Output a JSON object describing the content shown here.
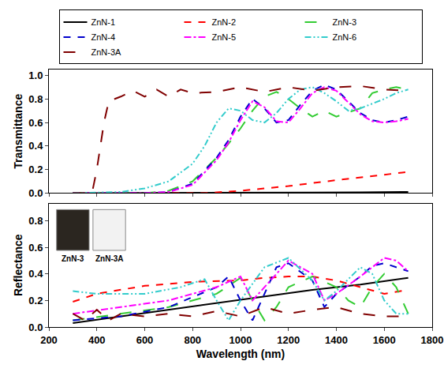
{
  "chart_data": [
    {
      "type": "line",
      "ylabel": "Transmittance",
      "legend": "top",
      "grid": false,
      "tick_labels": "y",
      "xlim": [
        200,
        1800
      ],
      "xticks": [
        200,
        400,
        600,
        800,
        1000,
        1200,
        1400,
        1600,
        1800
      ],
      "ylim": [
        0,
        1.05
      ],
      "yticks": [
        {
          "value": 0,
          "label": "0.0"
        },
        0.2,
        0.4,
        0.6,
        0.8,
        {
          "value": 1,
          "label": "1.0"
        }
      ],
      "series": [
        {
          "name": "ZnN-1",
          "color": "#000000",
          "line_style": "solid",
          "x": [
            300,
            500,
            700,
            900,
            1100,
            1300,
            1500,
            1700
          ],
          "values": [
            0,
            0,
            0,
            0,
            0,
            0.005,
            0.007,
            0.01
          ]
        },
        {
          "name": "ZnN-2",
          "color": "#ff0000",
          "line_style": "dash",
          "x": [
            300,
            600,
            850,
            1000,
            1200,
            1400,
            1600,
            1700
          ],
          "values": [
            0,
            0,
            0,
            0.02,
            0.06,
            0.11,
            0.16,
            0.18
          ]
        },
        {
          "name": "ZnN-3",
          "color": "#33cc33",
          "line_style": "longdash",
          "x": [
            300,
            600,
            700,
            800,
            900,
            950,
            1000,
            1050,
            1100,
            1150,
            1200,
            1250,
            1300,
            1350,
            1400,
            1500,
            1550,
            1600,
            1650,
            1700
          ],
          "values": [
            0,
            0,
            0.02,
            0.1,
            0.3,
            0.42,
            0.55,
            0.7,
            0.82,
            0.86,
            0.8,
            0.72,
            0.65,
            0.7,
            0.65,
            0.72,
            0.85,
            0.88,
            0.9,
            0.88
          ]
        },
        {
          "name": "ZnN-4",
          "color": "#0000cc",
          "line_style": "dash",
          "x": [
            300,
            600,
            700,
            800,
            900,
            950,
            1000,
            1050,
            1100,
            1150,
            1200,
            1250,
            1300,
            1350,
            1400,
            1450,
            1500,
            1550,
            1600,
            1650,
            1700
          ],
          "values": [
            0,
            0,
            0.01,
            0.08,
            0.3,
            0.45,
            0.65,
            0.8,
            0.72,
            0.6,
            0.62,
            0.75,
            0.87,
            0.92,
            0.88,
            0.78,
            0.68,
            0.62,
            0.6,
            0.62,
            0.65
          ]
        },
        {
          "name": "ZnN-5",
          "color": "#ff00ff",
          "line_style": "dashdot",
          "x": [
            300,
            600,
            700,
            800,
            900,
            950,
            1000,
            1050,
            1100,
            1150,
            1200,
            1250,
            1300,
            1350,
            1400,
            1450,
            1500,
            1550,
            1600,
            1650,
            1700
          ],
          "values": [
            0,
            0,
            0.01,
            0.07,
            0.28,
            0.43,
            0.62,
            0.78,
            0.73,
            0.61,
            0.6,
            0.72,
            0.85,
            0.9,
            0.87,
            0.77,
            0.67,
            0.61,
            0.6,
            0.61,
            0.63
          ]
        },
        {
          "name": "ZnN-6",
          "color": "#33cccc",
          "line_style": "dashdotdot",
          "x": [
            300,
            500,
            600,
            700,
            800,
            850,
            900,
            950,
            1000,
            1050,
            1100,
            1150,
            1200,
            1250,
            1300,
            1350,
            1400,
            1450,
            1500,
            1550,
            1600,
            1650,
            1700
          ],
          "values": [
            0,
            0.01,
            0.04,
            0.1,
            0.25,
            0.4,
            0.6,
            0.72,
            0.7,
            0.62,
            0.6,
            0.68,
            0.8,
            0.88,
            0.9,
            0.85,
            0.78,
            0.7,
            0.72,
            0.76,
            0.8,
            0.85,
            0.88
          ]
        },
        {
          "name": "ZnN-3A",
          "color": "#800000",
          "line_style": "longdash",
          "x": [
            300,
            380,
            400,
            430,
            450,
            500,
            550,
            600,
            650,
            700,
            750,
            800,
            900,
            1000,
            1100,
            1200,
            1300,
            1400,
            1500,
            1600,
            1700
          ],
          "values": [
            0,
            0,
            0.2,
            0.6,
            0.78,
            0.82,
            0.87,
            0.82,
            0.88,
            0.82,
            0.88,
            0.85,
            0.86,
            0.9,
            0.86,
            0.9,
            0.87,
            0.9,
            0.91,
            0.88,
            0.87
          ]
        }
      ]
    },
    {
      "type": "line",
      "ylabel": "Reflectance",
      "xlabel": "Wavelength (nm)",
      "grid": false,
      "annotations": [
        "ZnN-3",
        "ZnN-3A"
      ],
      "xlim": [
        200,
        1800
      ],
      "xticks": [
        200,
        400,
        600,
        800,
        1000,
        1200,
        1400,
        1600,
        1800
      ],
      "ylim": [
        0,
        0.93
      ],
      "yticks": [
        {
          "value": 0,
          "label": "0.0"
        },
        0.2,
        0.4,
        0.6,
        0.8
      ],
      "series": [
        {
          "name": "ZnN-1",
          "color": "#000000",
          "line_style": "solid",
          "x": [
            300,
            500,
            700,
            900,
            1100,
            1300,
            1500,
            1700
          ],
          "values": [
            0.03,
            0.08,
            0.13,
            0.18,
            0.23,
            0.28,
            0.32,
            0.37
          ]
        },
        {
          "name": "ZnN-2",
          "color": "#ff0000",
          "line_style": "dash",
          "x": [
            300,
            400,
            600,
            800,
            1000,
            1100,
            1200,
            1300,
            1400,
            1500,
            1600,
            1700
          ],
          "values": [
            0.19,
            0.25,
            0.31,
            0.34,
            0.35,
            0.37,
            0.38,
            0.38,
            0.35,
            0.3,
            0.25,
            0.28
          ]
        },
        {
          "name": "ZnN-3",
          "color": "#33cc33",
          "line_style": "longdash",
          "x": [
            300,
            500,
            700,
            900,
            1000,
            1050,
            1100,
            1150,
            1200,
            1300,
            1400,
            1450,
            1500,
            1550,
            1600,
            1650,
            1700
          ],
          "values": [
            0.05,
            0.1,
            0.15,
            0.25,
            0.37,
            0.2,
            0.05,
            0.15,
            0.3,
            0.38,
            0.3,
            0.2,
            0.15,
            0.3,
            0.4,
            0.3,
            0.1
          ]
        },
        {
          "name": "ZnN-4",
          "color": "#0000cc",
          "line_style": "dash",
          "x": [
            300,
            500,
            700,
            900,
            950,
            1000,
            1050,
            1100,
            1150,
            1200,
            1300,
            1350,
            1400,
            1500,
            1550,
            1600,
            1650,
            1700
          ],
          "values": [
            0.05,
            0.08,
            0.15,
            0.3,
            0.38,
            0.2,
            0.05,
            0.25,
            0.45,
            0.48,
            0.35,
            0.15,
            0.25,
            0.38,
            0.46,
            0.48,
            0.45,
            0.42
          ]
        },
        {
          "name": "ZnN-5",
          "color": "#ff00ff",
          "line_style": "dashdot",
          "x": [
            300,
            500,
            700,
            900,
            1000,
            1050,
            1100,
            1200,
            1300,
            1350,
            1400,
            1500,
            1600,
            1650,
            1700
          ],
          "values": [
            0.1,
            0.15,
            0.2,
            0.3,
            0.38,
            0.2,
            0.3,
            0.5,
            0.4,
            0.2,
            0.25,
            0.38,
            0.52,
            0.5,
            0.42
          ]
        },
        {
          "name": "ZnN-6",
          "color": "#33cccc",
          "line_style": "dashdotdot",
          "x": [
            300,
            400,
            600,
            750,
            850,
            900,
            950,
            1000,
            1100,
            1200,
            1300,
            1350,
            1400,
            1500,
            1550,
            1600,
            1650,
            1700
          ],
          "values": [
            0.27,
            0.25,
            0.25,
            0.3,
            0.36,
            0.2,
            0.05,
            0.2,
            0.45,
            0.52,
            0.35,
            0.2,
            0.27,
            0.45,
            0.4,
            0.2,
            0.1,
            0.1
          ]
        },
        {
          "name": "ZnN-3A",
          "color": "#800000",
          "line_style": "longdash",
          "x": [
            300,
            350,
            400,
            450,
            500,
            600,
            700,
            800,
            900,
            1000,
            1100,
            1200,
            1300,
            1400,
            1500,
            1600,
            1700
          ],
          "values": [
            0.1,
            0.05,
            0.13,
            0.05,
            0.1,
            0.08,
            0.1,
            0.08,
            0.12,
            0.08,
            0.15,
            0.1,
            0.13,
            0.15,
            0.1,
            0.08,
            0.08
          ]
        }
      ]
    }
  ]
}
